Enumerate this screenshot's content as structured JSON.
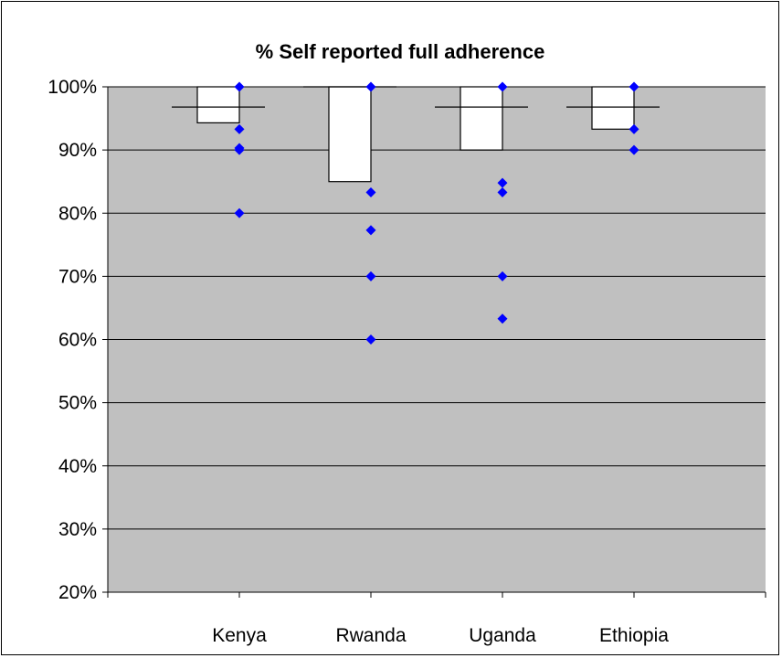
{
  "chart_data": {
    "type": "box",
    "title": "% Self reported full adherence",
    "xlabel": "",
    "ylabel": "",
    "categories": [
      "Kenya",
      "Rwanda",
      "Uganda",
      "Ethiopia"
    ],
    "ylim": [
      20,
      100
    ],
    "yticks": [
      20,
      30,
      40,
      50,
      60,
      70,
      80,
      90,
      100
    ],
    "ytick_labels": [
      "20%",
      "30%",
      "40%",
      "50%",
      "60%",
      "70%",
      "80%",
      "90%",
      "100%"
    ],
    "grid": true,
    "boxes": [
      {
        "category": "Kenya",
        "q1": 94.3,
        "q3": 100,
        "median": 96.8
      },
      {
        "category": "Rwanda",
        "q1": 85,
        "q3": 100,
        "median": 100
      },
      {
        "category": "Uganda",
        "q1": 90,
        "q3": 100,
        "median": 96.8
      },
      {
        "category": "Ethiopia",
        "q1": 93.3,
        "q3": 100,
        "median": 96.8
      }
    ],
    "points": [
      {
        "category": "Kenya",
        "values": [
          100,
          93.3,
          90.3,
          90,
          80
        ]
      },
      {
        "category": "Rwanda",
        "values": [
          100,
          83.3,
          77.3,
          70,
          60
        ]
      },
      {
        "category": "Uganda",
        "values": [
          100,
          84.8,
          83.3,
          70,
          63.3
        ]
      },
      {
        "category": "Ethiopia",
        "values": [
          100,
          93.3,
          90
        ]
      }
    ],
    "colors": {
      "plot_background": "#c0c0c0",
      "box_fill": "#ffffff",
      "point_color": "#0000ff",
      "gridline": "#000000"
    }
  }
}
